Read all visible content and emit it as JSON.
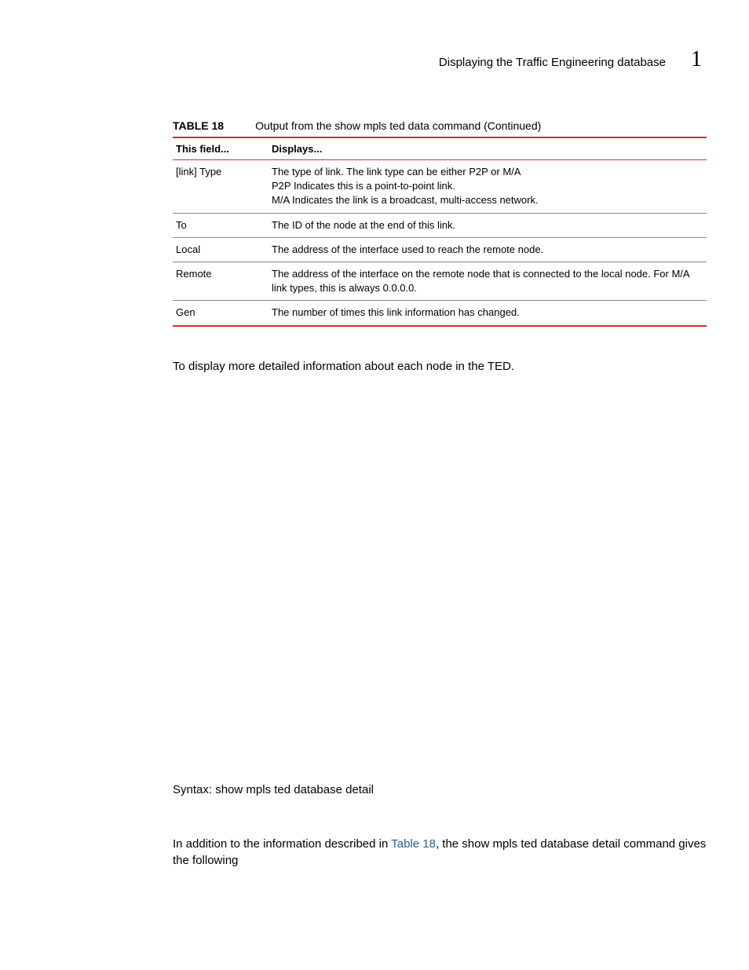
{
  "header": {
    "title": "Displaying the Traffic Engineering database",
    "chapter_number": "1"
  },
  "table": {
    "label": "TABLE 18",
    "caption": "Output from the show mpls ted data command  (Continued)",
    "columns": [
      "This field...",
      "Displays..."
    ],
    "rows": [
      {
        "field": "[link] Type",
        "displays": "The type of link.   The link type can be either P2P or M/A\nP2P Indicates this is a point-to-point link.\nM/A Indicates the link is a broadcast, multi-access network."
      },
      {
        "field": "To",
        "displays": "The ID of the node at the end of this link."
      },
      {
        "field": "Local",
        "displays": "The address of the interface used to reach the remote node."
      },
      {
        "field": "Remote",
        "displays": "The address of the interface on the remote node that is connected to the local node. For M/A link types, this is always 0.0.0.0."
      },
      {
        "field": "Gen",
        "displays": "The number of times this link information has changed."
      }
    ]
  },
  "body": {
    "intro": "To display more detailed information about each node in the TED.",
    "syntax": "Syntax:  show mpls ted database detail",
    "para2_prefix": "In addition to the information described in ",
    "para2_link": "Table 18",
    "para2_suffix": ", the show mpls ted database detail command gives the following"
  }
}
